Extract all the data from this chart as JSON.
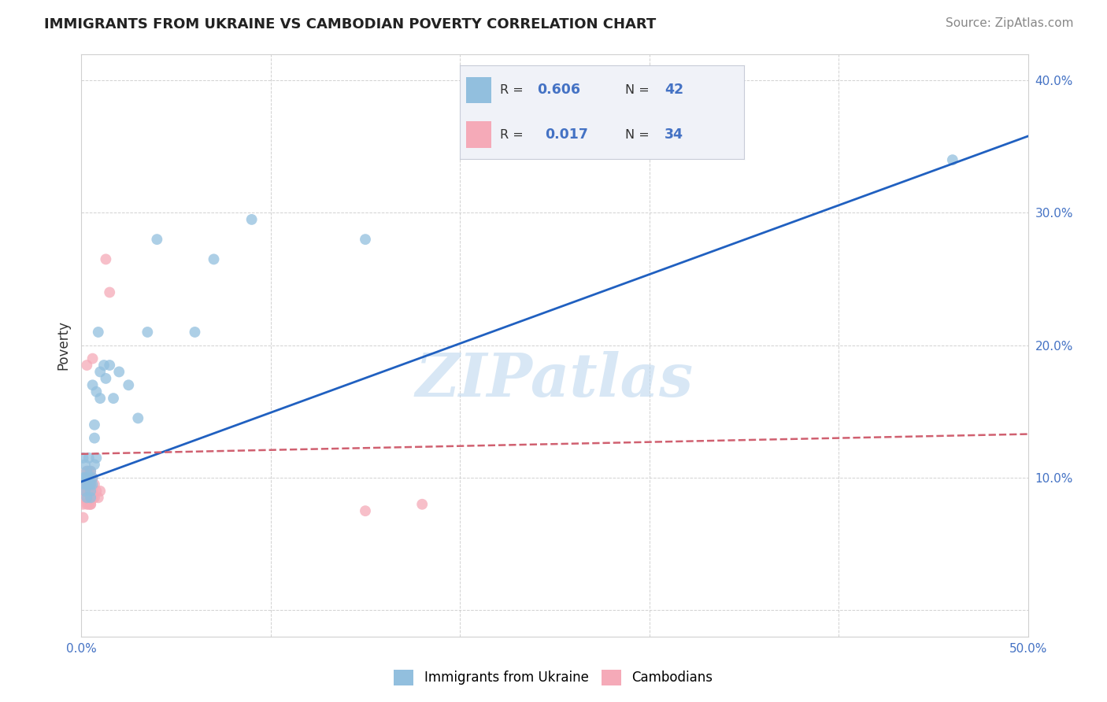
{
  "title": "IMMIGRANTS FROM UKRAINE VS CAMBODIAN POVERTY CORRELATION CHART",
  "source": "Source: ZipAtlas.com",
  "ylabel": "Poverty",
  "xlim": [
    0,
    0.5
  ],
  "ylim": [
    -0.02,
    0.42
  ],
  "xticks": [
    0.0,
    0.1,
    0.2,
    0.3,
    0.4,
    0.5
  ],
  "yticks": [
    0.0,
    0.1,
    0.2,
    0.3,
    0.4
  ],
  "ytick_labels": [
    "",
    "10.0%",
    "20.0%",
    "30.0%",
    "40.0%"
  ],
  "xtick_labels": [
    "0.0%",
    "",
    "",
    "",
    "",
    "50.0%"
  ],
  "blue_R": 0.606,
  "blue_N": 42,
  "pink_R": 0.017,
  "pink_N": 34,
  "blue_color": "#92bfde",
  "pink_color": "#f5aab8",
  "blue_line_color": "#2060c0",
  "pink_line_color": "#d06070",
  "watermark": "ZIPatlas",
  "background_color": "#ffffff",
  "grid_color": "#cccccc",
  "blue_x": [
    0.001,
    0.001,
    0.002,
    0.002,
    0.002,
    0.002,
    0.003,
    0.003,
    0.003,
    0.003,
    0.004,
    0.004,
    0.004,
    0.005,
    0.005,
    0.005,
    0.005,
    0.006,
    0.006,
    0.006,
    0.007,
    0.007,
    0.007,
    0.008,
    0.008,
    0.009,
    0.01,
    0.01,
    0.012,
    0.013,
    0.015,
    0.017,
    0.02,
    0.025,
    0.03,
    0.035,
    0.04,
    0.06,
    0.07,
    0.09,
    0.15,
    0.46
  ],
  "blue_y": [
    0.115,
    0.1,
    0.095,
    0.11,
    0.1,
    0.09,
    0.095,
    0.085,
    0.105,
    0.1,
    0.1,
    0.095,
    0.115,
    0.09,
    0.105,
    0.095,
    0.085,
    0.1,
    0.095,
    0.17,
    0.11,
    0.13,
    0.14,
    0.115,
    0.165,
    0.21,
    0.16,
    0.18,
    0.185,
    0.175,
    0.185,
    0.16,
    0.18,
    0.17,
    0.145,
    0.21,
    0.28,
    0.21,
    0.265,
    0.295,
    0.28,
    0.34
  ],
  "pink_x": [
    0.001,
    0.001,
    0.001,
    0.001,
    0.002,
    0.002,
    0.002,
    0.003,
    0.003,
    0.003,
    0.003,
    0.003,
    0.004,
    0.004,
    0.004,
    0.004,
    0.005,
    0.005,
    0.005,
    0.005,
    0.005,
    0.006,
    0.006,
    0.006,
    0.006,
    0.007,
    0.007,
    0.008,
    0.009,
    0.01,
    0.013,
    0.015,
    0.15,
    0.18
  ],
  "pink_y": [
    0.095,
    0.085,
    0.08,
    0.07,
    0.09,
    0.085,
    0.095,
    0.08,
    0.09,
    0.095,
    0.105,
    0.185,
    0.08,
    0.09,
    0.095,
    0.105,
    0.08,
    0.085,
    0.095,
    0.105,
    0.08,
    0.085,
    0.09,
    0.1,
    0.19,
    0.085,
    0.095,
    0.09,
    0.085,
    0.09,
    0.265,
    0.24,
    0.075,
    0.08
  ],
  "blue_trend_x": [
    0.0,
    0.5
  ],
  "blue_trend_y": [
    0.097,
    0.358
  ],
  "pink_trend_x": [
    0.0,
    0.5
  ],
  "pink_trend_y": [
    0.118,
    0.133
  ],
  "legend_box_color": "#f0f2f8",
  "legend_box_edge": "#c8ccd8",
  "tick_color": "#4472c4",
  "title_fontsize": 13,
  "source_fontsize": 11,
  "axis_label_fontsize": 12,
  "tick_fontsize": 11
}
